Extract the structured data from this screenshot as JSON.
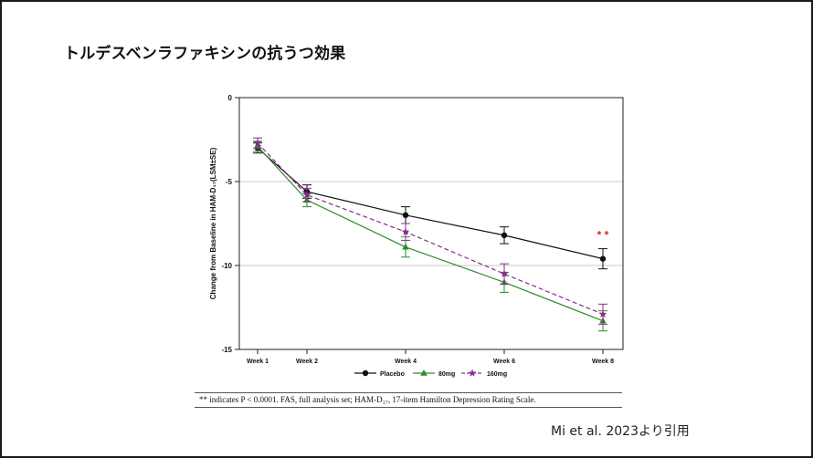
{
  "slide": {
    "title": "トルデスベンラファキシンの抗うつ効果",
    "citation": "Mi et al. 2023より引用",
    "footnote": "** indicates P < 0.0001. FAS, full analysis set; HAM-D₁₇, 17-item Hamilton Depression Rating Scale."
  },
  "chart_data": {
    "type": "line",
    "title": "",
    "xlabel": "",
    "ylabel": "Change from Baseline in HAM-D₁₇(LSM±SE)",
    "categories": [
      "Week 1",
      "Week 2",
      "Week 4",
      "Week 6",
      "Week 8"
    ],
    "ylim": [
      -15,
      0
    ],
    "yticks": [
      0,
      -5,
      -10,
      -15
    ],
    "gridlines_y": [
      -5,
      -10
    ],
    "legend_position": "bottom",
    "annotation": {
      "text": "* *",
      "category": "Week 8",
      "value": -8.4,
      "color": "#e0241b"
    },
    "series": [
      {
        "name": "Placebo",
        "color": "#111111",
        "marker": "circle",
        "dash": "solid",
        "values": [
          -3.0,
          -5.6,
          -7.0,
          -8.2,
          -9.6
        ],
        "se": [
          0.3,
          0.4,
          0.5,
          0.5,
          0.6
        ]
      },
      {
        "name": "80mg",
        "color": "#2e8b2e",
        "marker": "triangle",
        "dash": "solid",
        "values": [
          -2.9,
          -6.1,
          -8.9,
          -11.0,
          -13.3
        ],
        "se": [
          0.3,
          0.4,
          0.6,
          0.6,
          0.6
        ]
      },
      {
        "name": "160mg",
        "color": "#8b2a8b",
        "marker": "star",
        "dash": "dashed",
        "values": [
          -2.7,
          -5.8,
          -8.0,
          -10.5,
          -12.9
        ],
        "se": [
          0.3,
          0.4,
          0.5,
          0.6,
          0.6
        ]
      }
    ]
  }
}
